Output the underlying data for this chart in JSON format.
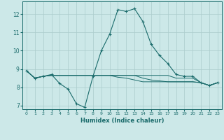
{
  "title": "",
  "xlabel": "Humidex (Indice chaleur)",
  "ylabel": "",
  "background_color": "#cce8e8",
  "grid_color": "#aacccc",
  "line_color": "#1a6b6b",
  "x_values": [
    0,
    1,
    2,
    3,
    4,
    5,
    6,
    7,
    8,
    9,
    10,
    11,
    12,
    13,
    14,
    15,
    16,
    17,
    18,
    19,
    20,
    21,
    22,
    23
  ],
  "line1": [
    8.9,
    8.5,
    8.6,
    8.7,
    8.2,
    7.9,
    7.1,
    6.9,
    8.6,
    10.0,
    10.9,
    12.25,
    12.15,
    12.3,
    11.6,
    10.35,
    9.75,
    9.3,
    8.7,
    8.6,
    8.6,
    8.25,
    8.1,
    8.25
  ],
  "line2": [
    8.9,
    8.5,
    8.6,
    8.65,
    8.65,
    8.65,
    8.65,
    8.65,
    8.65,
    8.65,
    8.65,
    8.65,
    8.65,
    8.65,
    8.65,
    8.65,
    8.65,
    8.65,
    8.5,
    8.5,
    8.5,
    8.25,
    8.1,
    8.25
  ],
  "line3": [
    8.9,
    8.5,
    8.6,
    8.65,
    8.65,
    8.65,
    8.65,
    8.65,
    8.65,
    8.65,
    8.65,
    8.65,
    8.65,
    8.65,
    8.5,
    8.4,
    8.35,
    8.3,
    8.3,
    8.3,
    8.3,
    8.25,
    8.1,
    8.25
  ],
  "line4": [
    8.9,
    8.5,
    8.6,
    8.65,
    8.65,
    8.65,
    8.65,
    8.65,
    8.65,
    8.65,
    8.65,
    8.55,
    8.5,
    8.4,
    8.3,
    8.3,
    8.3,
    8.3,
    8.3,
    8.3,
    8.3,
    8.25,
    8.1,
    8.25
  ],
  "xlim": [
    -0.5,
    23.5
  ],
  "ylim": [
    6.8,
    12.7
  ],
  "yticks": [
    7,
    8,
    9,
    10,
    11,
    12
  ],
  "xticks": [
    0,
    1,
    2,
    3,
    4,
    5,
    6,
    7,
    8,
    9,
    10,
    11,
    12,
    13,
    14,
    15,
    16,
    17,
    18,
    19,
    20,
    21,
    22,
    23
  ],
  "xtick_labels": [
    "0",
    "1",
    "2",
    "3",
    "4",
    "5",
    "6",
    "7",
    "8",
    "9",
    "10",
    "11",
    "12",
    "13",
    "14",
    "15",
    "16",
    "17",
    "18",
    "19",
    "20",
    "21",
    "22",
    "23"
  ]
}
